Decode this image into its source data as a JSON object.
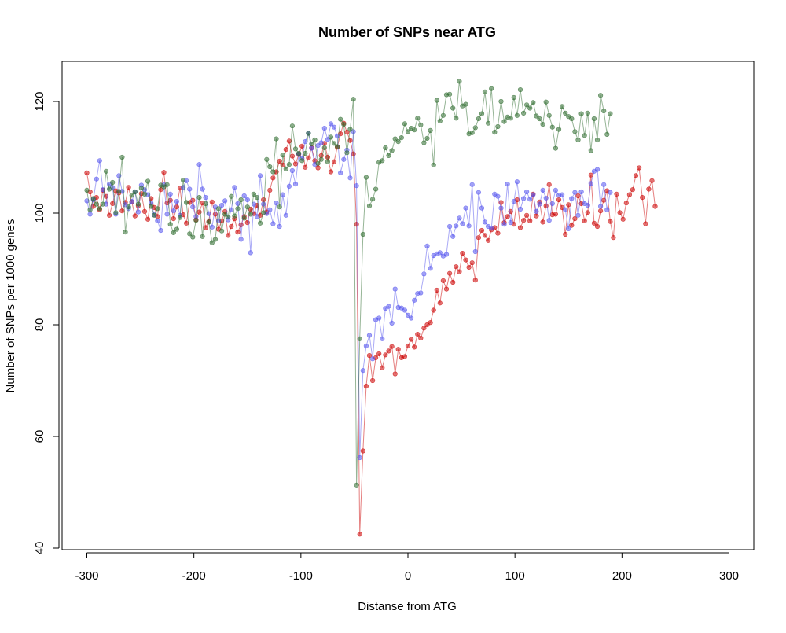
{
  "chart_data": {
    "type": "line",
    "title": "Number of SNPs near ATG",
    "xlabel": "Distanse from ATG",
    "ylabel": "Number of SNPs per 1000 genes",
    "xlim": [
      -300,
      300
    ],
    "ylim": [
      40,
      125
    ],
    "x_ticks": [
      -300,
      -200,
      -100,
      0,
      100,
      200,
      300
    ],
    "y_ticks": [
      40,
      60,
      80,
      100,
      120
    ],
    "x_tick_labels": [
      "-300",
      "-200",
      "-100",
      "0",
      "100",
      "200",
      "300"
    ],
    "y_tick_labels": [
      "40",
      "60",
      "80",
      "100",
      "120"
    ],
    "grid": false,
    "legend": "none",
    "x_start": -300,
    "x_step": 3,
    "series": [
      {
        "color": "#cc0000",
        "values": [
          107.2,
          103.8,
          101.2,
          102.8,
          100.6,
          104.1,
          103.0,
          99.6,
          101.7,
          104.0,
          103.6,
          100.4,
          101.9,
          104.6,
          102.0,
          99.5,
          101.3,
          103.5,
          100.3,
          98.9,
          102.6,
          101.0,
          99.4,
          104.2,
          107.3,
          101.8,
          102.3,
          99.0,
          101.1,
          104.5,
          99.7,
          98.2,
          101.9,
          102.3,
          98.8,
          100.2,
          101.8,
          97.4,
          98.5,
          102.0,
          99.8,
          97.1,
          98.6,
          100.3,
          96.0,
          97.6,
          99.0,
          96.6,
          97.9,
          99.4,
          98.3,
          100.7,
          99.9,
          101.4,
          99.6,
          102.4,
          100.2,
          104.1,
          106.3,
          107.4,
          109.3,
          108.6,
          111.4,
          112.9,
          110.2,
          108.8,
          110.5,
          112.0,
          108.2,
          109.9,
          111.7,
          109.4,
          108.1,
          110.3,
          112.5,
          110.0,
          107.4,
          109.2,
          111.8,
          114.2,
          116.1,
          114.5,
          113.0,
          110.6,
          98.0,
          42.5,
          57.4,
          69.0,
          74.5,
          70.0,
          74.1,
          74.8,
          72.3,
          74.6,
          75.3,
          76.1,
          71.2,
          75.6,
          74.1,
          74.3,
          76.2,
          77.4,
          76.0,
          78.3,
          77.6,
          79.4,
          80.0,
          80.4,
          82.6,
          86.2,
          83.9,
          87.9,
          86.4,
          89.2,
          87.6,
          90.4,
          89.5,
          92.8,
          91.6,
          90.3,
          91.1,
          88.0,
          95.6,
          96.9,
          96.0,
          95.1,
          97.0,
          97.4,
          96.4,
          101.9,
          98.3,
          99.4,
          100.3,
          98.0,
          102.4,
          97.4,
          98.7,
          99.6,
          98.6,
          103.4,
          99.5,
          102.0,
          98.4,
          101.3,
          105.1,
          99.7,
          99.8,
          102.4,
          101.0,
          96.2,
          101.5,
          97.8,
          99.0,
          103.1,
          101.7,
          98.6,
          100.1,
          106.8,
          98.2,
          97.6,
          100.4,
          102.3,
          104.0,
          98.5,
          95.6,
          103.4,
          100.1,
          98.9,
          101.8,
          103.3,
          104.2,
          106.7,
          108.1,
          102.8,
          98.1,
          104.3,
          105.8,
          101.2
        ]
      },
      {
        "color": "#5555ee",
        "values": [
          102.2,
          99.8,
          102.4,
          106.1,
          109.4,
          104.2,
          101.6,
          105.2,
          104.6,
          99.8,
          106.7,
          103.9,
          101.5,
          100.8,
          102.1,
          103.8,
          100.2,
          105.0,
          104.2,
          103.3,
          101.8,
          99.7,
          98.6,
          96.9,
          105.1,
          99.8,
          103.4,
          100.4,
          102.1,
          99.6,
          104.6,
          105.8,
          104.3,
          101.1,
          99.4,
          108.7,
          104.3,
          102.8,
          99.9,
          97.5,
          101.1,
          98.6,
          101.4,
          102.2,
          98.8,
          100.6,
          104.6,
          101.7,
          95.3,
          103.1,
          102.4,
          92.9,
          101.6,
          99.4,
          106.7,
          101.6,
          99.9,
          100.6,
          98.1,
          101.8,
          97.6,
          103.3,
          99.6,
          104.8,
          107.6,
          105.2,
          110.6,
          109.8,
          112.8,
          114.3,
          111.6,
          108.7,
          112.1,
          112.6,
          115.2,
          113.2,
          116.0,
          115.4,
          113.8,
          107.2,
          109.6,
          111.3,
          106.3,
          114.6,
          104.9,
          56.2,
          71.8,
          76.2,
          78.1,
          73.9,
          80.9,
          81.2,
          77.5,
          82.9,
          83.3,
          80.3,
          86.4,
          83.1,
          83.0,
          82.6,
          81.7,
          81.2,
          84.4,
          85.6,
          85.7,
          89.1,
          94.1,
          90.1,
          92.4,
          92.7,
          92.9,
          92.3,
          92.6,
          97.6,
          95.8,
          97.7,
          99.1,
          98.1,
          100.9,
          97.7,
          105.1,
          93.1,
          103.7,
          100.9,
          98.4,
          97.6,
          97.3,
          103.4,
          103.0,
          100.9,
          98.0,
          105.2,
          98.3,
          102.1,
          105.6,
          100.7,
          102.6,
          103.8,
          102.5,
          103.3,
          100.3,
          101.6,
          104.1,
          102.7,
          98.7,
          101.7,
          104.1,
          103.2,
          103.3,
          100.6,
          97.2,
          102.6,
          103.7,
          99.6,
          103.8,
          101.7,
          101.4,
          105.3,
          107.5,
          107.8,
          101.2,
          105.1,
          100.6,
          103.7
        ]
      },
      {
        "color": "#2e6b2e",
        "values": [
          104.1,
          100.6,
          102.6,
          101.6,
          100.8,
          101.6,
          107.5,
          104.3,
          105.5,
          100.1,
          103.9,
          110.0,
          96.6,
          101.1,
          103.2,
          103.8,
          101.6,
          104.5,
          103.4,
          105.7,
          101.2,
          99.6,
          100.8,
          105.0,
          104.7,
          105.1,
          98.0,
          96.5,
          97.1,
          99.2,
          105.9,
          101.9,
          96.3,
          95.7,
          98.7,
          102.8,
          95.8,
          101.7,
          98.4,
          94.7,
          95.3,
          100.8,
          96.8,
          99.8,
          99.3,
          103.0,
          99.5,
          100.8,
          102.4,
          99.1,
          101.1,
          99.8,
          103.4,
          102.8,
          98.2,
          100.1,
          109.6,
          108.3,
          107.4,
          113.3,
          101.1,
          110.4,
          107.9,
          108.7,
          115.6,
          111.5,
          110.7,
          109.4,
          110.7,
          114.3,
          112.4,
          113.1,
          108.9,
          109.6,
          111.7,
          109.2,
          113.6,
          112.5,
          111.9,
          116.8,
          115.9,
          110.8,
          115.0,
          120.4,
          51.3,
          77.5,
          96.2,
          106.4,
          101.3,
          102.5,
          104.3,
          109.1,
          109.4,
          111.7,
          110.3,
          111.2,
          113.3,
          112.8,
          113.5,
          116.0,
          114.6,
          115.2,
          114.9,
          117.0,
          115.8,
          112.6,
          113.4,
          114.8,
          108.6,
          120.2,
          116.5,
          117.5,
          121.2,
          121.3,
          118.8,
          117.0,
          123.6,
          119.2,
          119.5,
          114.2,
          114.4,
          115.3,
          116.9,
          117.8,
          121.7,
          116.1,
          122.3,
          114.5,
          115.5,
          120.0,
          116.4,
          117.2,
          117.0,
          120.7,
          117.5,
          122.1,
          117.9,
          119.4,
          118.8,
          119.8,
          117.4,
          116.9,
          115.9,
          119.9,
          117.5,
          115.4,
          111.6,
          115.0,
          119.1,
          117.9,
          117.3,
          116.9,
          114.6,
          113.1,
          117.8,
          113.9,
          117.9,
          111.2,
          116.9,
          113.1,
          121.1,
          118.3,
          114.1,
          117.8
        ]
      }
    ]
  }
}
